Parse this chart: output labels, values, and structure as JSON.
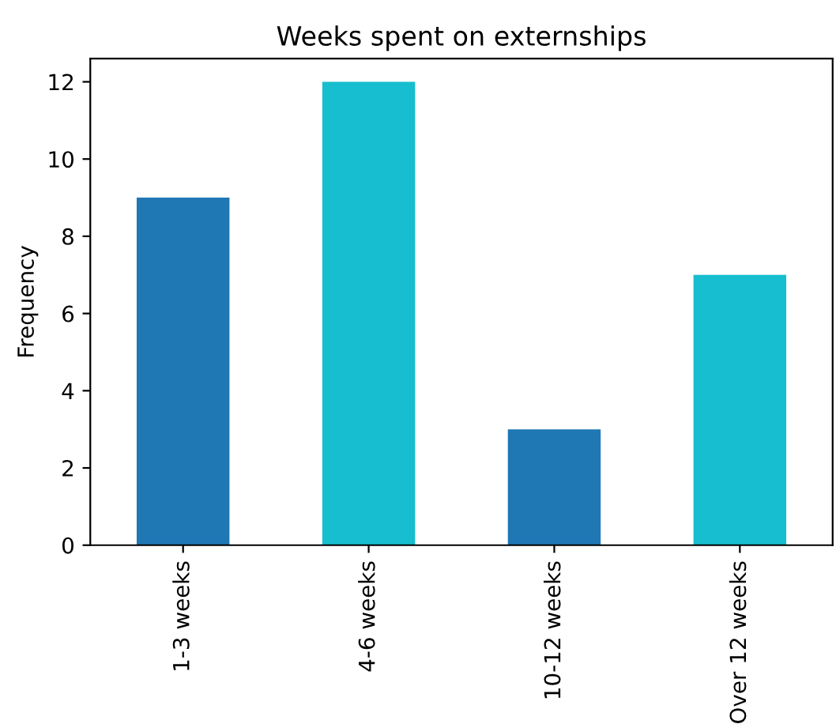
{
  "chart_data": {
    "type": "bar",
    "title": "Weeks spent on externships",
    "ylabel": "Frequency",
    "categories": [
      "1-3 weeks",
      "4-6 weeks",
      "10-12 weeks",
      "Over 12 weeks"
    ],
    "values": [
      9,
      12,
      3,
      7
    ],
    "colors": [
      "#1f77b4",
      "#17becf",
      "#1f77b4",
      "#17becf"
    ],
    "ylim": [
      0,
      12.6
    ],
    "yticks": [
      0,
      2,
      4,
      6,
      8,
      10,
      12
    ],
    "grid": false,
    "legend": false
  }
}
